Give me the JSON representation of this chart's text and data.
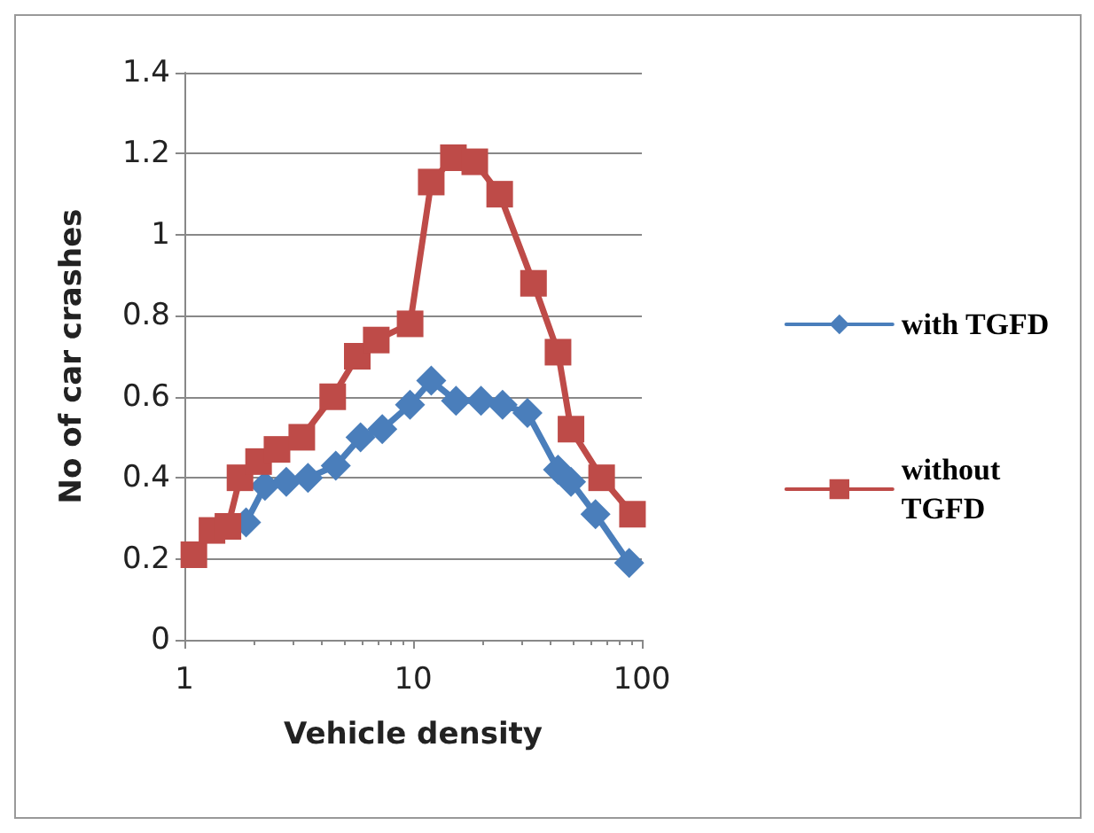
{
  "chart_data": {
    "type": "line",
    "xlabel": "Vehicle density",
    "ylabel": "No of car crashes",
    "log": "x",
    "xlim": [
      1,
      100
    ],
    "xticks": [
      1,
      10,
      100
    ],
    "ylim": [
      0,
      1.4
    ],
    "yticks": [
      0,
      0.2,
      0.4,
      0.6,
      0.8,
      1,
      1.2,
      1.4
    ],
    "grid": "y",
    "legend": "right",
    "line_style": "solid",
    "series": [
      {
        "name": "with TGFD",
        "color": "#4a7ebb",
        "marker": "diamond",
        "x": [
          1.86,
          2.25,
          2.79,
          3.47,
          4.59,
          5.89,
          7.33,
          9.69,
          12,
          15.4,
          19.8,
          24.6,
          31.6,
          43,
          49,
          62.7,
          88
        ],
        "values": [
          0.29,
          0.38,
          0.39,
          0.4,
          0.43,
          0.5,
          0.52,
          0.58,
          0.64,
          0.59,
          0.59,
          0.58,
          0.56,
          0.42,
          0.39,
          0.31,
          0.19
        ]
      },
      {
        "name": "without\nTGFD",
        "color": "#be4b48",
        "marker": "square",
        "x": [
          1.1,
          1.32,
          1.55,
          1.75,
          2.11,
          2.54,
          3.26,
          4.45,
          5.7,
          6.9,
          9.7,
          12,
          15,
          18.6,
          23.9,
          33.6,
          43,
          49,
          66.7,
          91
        ],
        "values": [
          0.21,
          0.27,
          0.28,
          0.4,
          0.44,
          0.47,
          0.5,
          0.6,
          0.7,
          0.74,
          0.78,
          1.13,
          1.19,
          1.18,
          1.1,
          0.88,
          0.71,
          0.52,
          0.4,
          0.31
        ]
      }
    ]
  }
}
